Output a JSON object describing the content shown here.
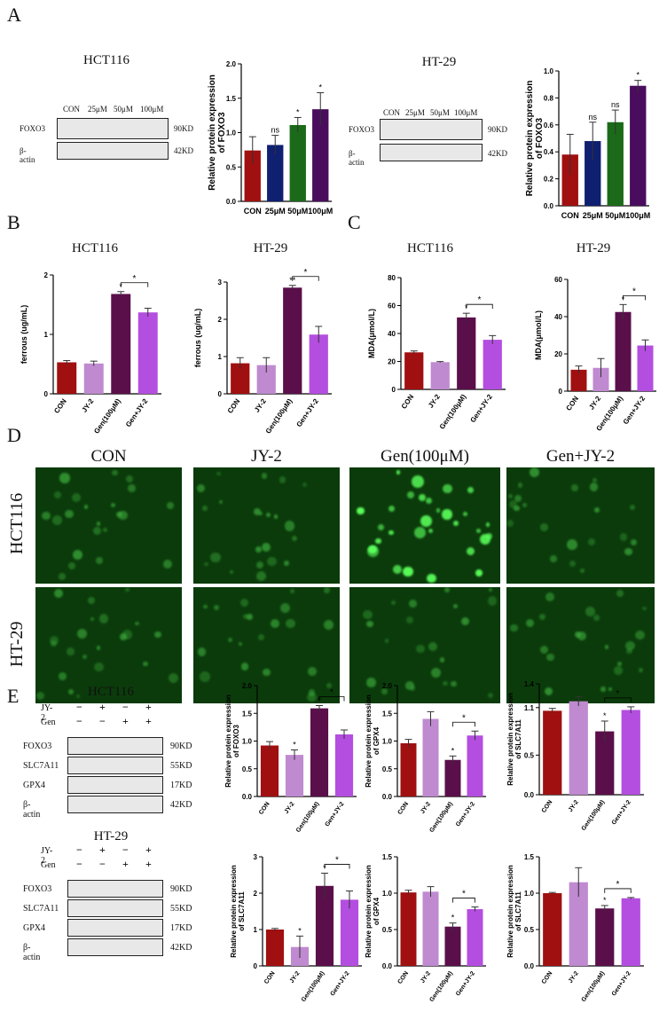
{
  "panels": {
    "A": "A",
    "B": "B",
    "C": "C",
    "D": "D",
    "E": "E"
  },
  "colors": {
    "red": "#a01010",
    "navy": "#102070",
    "green": "#1a6a1a",
    "purple": "#4a0d5e",
    "lilac": "#c08ad0",
    "violet": "#b44ee0",
    "darkpurple": "#5a0e4a"
  },
  "panelA": {
    "hct116_title": "HCT116",
    "ht29_title": "HT-29",
    "lanes": [
      "CON",
      "25μM",
      "50μM",
      "100μM"
    ],
    "rows": [
      {
        "label": "FOXO3",
        "kd": "90KD"
      },
      {
        "label": "β-actin",
        "kd": "42KD"
      }
    ]
  },
  "panelB": {
    "hct116_title": "HCT116",
    "ht29_title": "HT-29"
  },
  "panelC": {
    "hct116_title": "HCT116",
    "ht29_title": "HT-29"
  },
  "panelD": {
    "columns": [
      "CON",
      "JY-2",
      "Gen(100μM)",
      "Gen+JY-2"
    ],
    "rows": [
      "HCT116",
      "HT-29"
    ]
  },
  "panelE": {
    "hct116_title": "HCT116",
    "ht29_title": "HT-29",
    "treat_rows": [
      {
        "label": "JY-2",
        "signs": [
          "−",
          "+",
          "−",
          "+"
        ]
      },
      {
        "label": "Gen",
        "signs": [
          "−",
          "−",
          "+",
          "+"
        ]
      }
    ],
    "rows": [
      {
        "label": "FOXO3",
        "kd": "90KD"
      },
      {
        "label": "SLC7A11",
        "kd": "55KD"
      },
      {
        "label": "GPX4",
        "kd": "17KD"
      },
      {
        "label": "β-actin",
        "kd": "42KD"
      }
    ]
  },
  "chart_data": [
    {
      "id": "A1",
      "type": "bar",
      "categories": [
        "CON",
        "25μM",
        "50μM",
        "100μM"
      ],
      "values": [
        0.74,
        0.82,
        1.11,
        1.34
      ],
      "errors": [
        0.2,
        0.14,
        0.11,
        0.24
      ],
      "marks": [
        "",
        "ns",
        "*",
        "*"
      ],
      "ylabel": "Relative protein expression of FOXO3",
      "ylim": [
        0,
        2.0
      ],
      "yticks": [
        "0.0",
        "0.5",
        "1.0",
        "1.5",
        "2.0"
      ],
      "colors": [
        "#a01010",
        "#102070",
        "#1a6a1a",
        "#4a0d5e"
      ]
    },
    {
      "id": "A2",
      "type": "bar",
      "categories": [
        "CON",
        "25μM",
        "50μM",
        "100μM"
      ],
      "values": [
        0.38,
        0.48,
        0.62,
        0.89
      ],
      "errors": [
        0.15,
        0.14,
        0.09,
        0.04
      ],
      "marks": [
        "",
        "ns",
        "ns",
        "*"
      ],
      "ylabel": "Relative protein expression of FOXO3",
      "ylim": [
        0,
        1.0
      ],
      "yticks": [
        "0.0",
        "0.2",
        "0.4",
        "0.6",
        "0.8",
        "1.0"
      ],
      "colors": [
        "#a01010",
        "#102070",
        "#1a6a1a",
        "#4a0d5e"
      ]
    },
    {
      "id": "B1",
      "type": "bar",
      "categories": [
        "CON",
        "JY-2",
        "Gen(100μM)",
        "Gen+JY-2"
      ],
      "values": [
        0.53,
        0.51,
        1.68,
        1.37
      ],
      "errors": [
        0.03,
        0.04,
        0.04,
        0.07
      ],
      "marks": [
        "",
        "",
        "*",
        ""
      ],
      "bracket": "*",
      "ylabel": "ferrous (ug/mL)",
      "ylim": [
        0,
        2
      ],
      "yticks": [
        "0",
        "1",
        "2"
      ],
      "colors": [
        "#a01010",
        "#c08ad0",
        "#5a0e4a",
        "#b44ee0"
      ]
    },
    {
      "id": "B2",
      "type": "bar",
      "categories": [
        "CON",
        "JY-2",
        "Gen(100μM)",
        "Gen+JY-2"
      ],
      "values": [
        0.82,
        0.77,
        2.85,
        1.59
      ],
      "errors": [
        0.15,
        0.2,
        0.06,
        0.22
      ],
      "marks": [
        "",
        "",
        "**",
        ""
      ],
      "bracket": "*",
      "ylabel": "ferrous (ug/mL)",
      "ylim": [
        0,
        3
      ],
      "yticks": [
        "0",
        "1",
        "2",
        "3"
      ],
      "colors": [
        "#a01010",
        "#c08ad0",
        "#5a0e4a",
        "#b44ee0"
      ]
    },
    {
      "id": "C1",
      "type": "bar",
      "categories": [
        "CON",
        "JY-2",
        "Gen(100μM)",
        "Gen+JY-2"
      ],
      "values": [
        26.5,
        19.5,
        51.5,
        35.5
      ],
      "errors": [
        1,
        0.4,
        3,
        3
      ],
      "marks": [
        "",
        "",
        "*",
        ""
      ],
      "bracket": "*",
      "ylabel": "MDA(μmol/L)",
      "ylim": [
        0,
        80
      ],
      "yticks": [
        "0",
        "20",
        "40",
        "60",
        "80"
      ],
      "colors": [
        "#a01010",
        "#c08ad0",
        "#5a0e4a",
        "#b44ee0"
      ]
    },
    {
      "id": "C2",
      "type": "bar",
      "categories": [
        "CON",
        "JY-2",
        "Gen(100μM)",
        "Gen+JY-2"
      ],
      "values": [
        11.5,
        12.5,
        42.5,
        24.5
      ],
      "errors": [
        2,
        5,
        4,
        3
      ],
      "marks": [
        "",
        "",
        "*",
        ""
      ],
      "bracket": "*",
      "ylabel": "MDA(μmol/L)",
      "ylim": [
        0,
        60
      ],
      "yticks": [
        "0",
        "20",
        "40",
        "60"
      ],
      "colors": [
        "#a01010",
        "#c08ad0",
        "#5a0e4a",
        "#b44ee0"
      ]
    },
    {
      "id": "E1",
      "type": "bar",
      "categories": [
        "CON",
        "JY-2",
        "Gen(100μM)",
        "Gen+JY-2"
      ],
      "values": [
        0.92,
        0.75,
        1.59,
        1.12
      ],
      "errors": [
        0.07,
        0.09,
        0.05,
        0.08
      ],
      "marks": [
        "",
        "*",
        "*",
        ""
      ],
      "bracket": "*",
      "ylabel": "Relative protein expression of FOXO3",
      "ylim": [
        0,
        2.0
      ],
      "yticks": [
        "0.0",
        "0.5",
        "1.0",
        "1.5",
        "2.0"
      ],
      "colors": [
        "#a01010",
        "#c08ad0",
        "#5a0e4a",
        "#b44ee0"
      ]
    },
    {
      "id": "E2",
      "type": "bar",
      "categories": [
        "CON",
        "JY-2",
        "Gen(100μM)",
        "Gen+JY-2"
      ],
      "values": [
        0.96,
        1.4,
        0.66,
        1.1
      ],
      "errors": [
        0.07,
        0.13,
        0.07,
        0.08
      ],
      "marks": [
        "",
        "",
        "*",
        ""
      ],
      "bracket": "*",
      "ylabel": "Relative protein expression of GPX4",
      "ylim": [
        0,
        2.0
      ],
      "yticks": [
        "0.0",
        "0.5",
        "1.0",
        "1.5",
        "2.0"
      ],
      "colors": [
        "#a01010",
        "#c08ad0",
        "#5a0e4a",
        "#b44ee0"
      ]
    },
    {
      "id": "E3",
      "type": "bar",
      "categories": [
        "CON",
        "JY-2",
        "Gen(100μM)",
        "Gen+JY-2"
      ],
      "values": [
        1.06,
        1.18,
        0.8,
        1.07
      ],
      "errors": [
        0.03,
        0.06,
        0.13,
        0.04
      ],
      "marks": [
        "",
        "",
        "*",
        ""
      ],
      "bracket": "*",
      "ylabel": "Relative protein expression of SLC7A11",
      "ylim": [
        0,
        1.4
      ],
      "yticks": [
        "0.0",
        "0.5",
        "1.1",
        "1.4"
      ],
      "tickvals": [
        0,
        0.5,
        1.1,
        1.4
      ],
      "colors": [
        "#a01010",
        "#c08ad0",
        "#5a0e4a",
        "#b44ee0"
      ]
    },
    {
      "id": "E4",
      "type": "bar",
      "categories": [
        "CON",
        "JY-2",
        "Gen(100μM)",
        "Gen+JY-2"
      ],
      "values": [
        1.0,
        0.52,
        2.2,
        1.82
      ],
      "errors": [
        0.03,
        0.3,
        0.35,
        0.24
      ],
      "marks": [
        "",
        "*",
        "*",
        ""
      ],
      "bracket": "*",
      "ylabel": "Relative protein expression of SLC7A11",
      "ylim": [
        0,
        3
      ],
      "yticks": [
        "0",
        "1",
        "2",
        "3"
      ],
      "colors": [
        "#a01010",
        "#c08ad0",
        "#5a0e4a",
        "#b44ee0"
      ]
    },
    {
      "id": "E5",
      "type": "bar",
      "categories": [
        "CON",
        "JY-2",
        "Gen(100μM)",
        "Gen+JY-2"
      ],
      "values": [
        1.01,
        1.02,
        0.54,
        0.78
      ],
      "errors": [
        0.03,
        0.07,
        0.05,
        0.03
      ],
      "marks": [
        "",
        "",
        "*",
        ""
      ],
      "bracket": "*",
      "ylabel": "Relative protein expression of GPX4",
      "ylim": [
        0,
        1.5
      ],
      "yticks": [
        "0.0",
        "0.5",
        "1.0",
        "1.5"
      ],
      "colors": [
        "#a01010",
        "#c08ad0",
        "#5a0e4a",
        "#b44ee0"
      ]
    },
    {
      "id": "E6",
      "type": "bar",
      "categories": [
        "CON",
        "JY-2",
        "Gen(100μM)",
        "Gen+JY-2"
      ],
      "values": [
        1.0,
        1.15,
        0.79,
        0.93
      ],
      "errors": [
        0.01,
        0.2,
        0.04,
        0.01
      ],
      "marks": [
        "",
        "",
        "*",
        ""
      ],
      "bracket": "*",
      "ylabel": "Relative protein expression of SLC7A11",
      "ylim": [
        0,
        1.5
      ],
      "yticks": [
        "0.0",
        "0.5",
        "1.0",
        "1.5"
      ],
      "colors": [
        "#a01010",
        "#c08ad0",
        "#5a0e4a",
        "#b44ee0"
      ]
    }
  ]
}
